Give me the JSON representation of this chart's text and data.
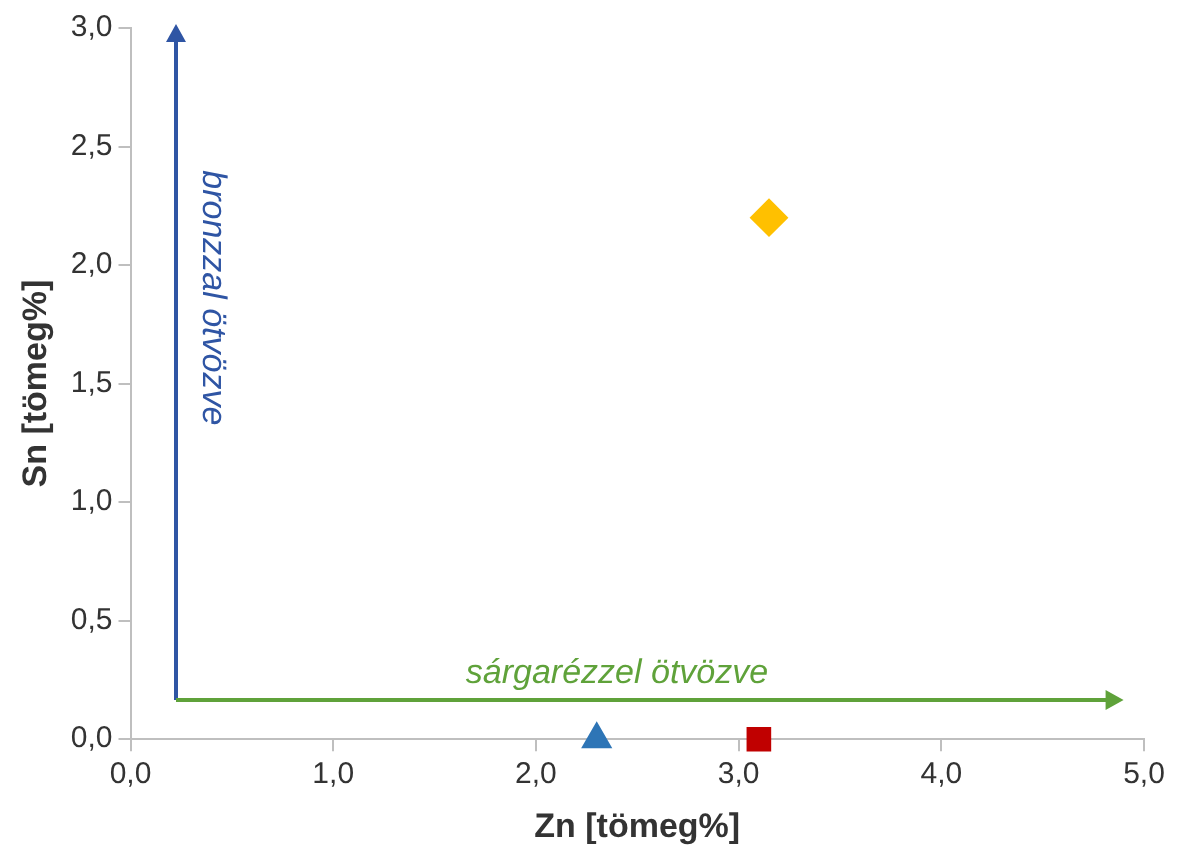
{
  "chart_data": {
    "type": "scatter",
    "xlabel": "Zn [tömeg%]",
    "ylabel": "Sn [tömeg%]",
    "xlim": [
      0,
      5
    ],
    "ylim": [
      0,
      3
    ],
    "xticks": [
      {
        "value": 0,
        "label": "0,0"
      },
      {
        "value": 1,
        "label": "1,0"
      },
      {
        "value": 2,
        "label": "2,0"
      },
      {
        "value": 3,
        "label": "3,0"
      },
      {
        "value": 4,
        "label": "4,0"
      },
      {
        "value": 5,
        "label": "5,0"
      }
    ],
    "yticks": [
      {
        "value": 0,
        "label": "0,0"
      },
      {
        "value": 0.5,
        "label": "0,5"
      },
      {
        "value": 1,
        "label": "1,0"
      },
      {
        "value": 1.5,
        "label": "1,5"
      },
      {
        "value": 2,
        "label": "2,0"
      },
      {
        "value": 2.5,
        "label": "2,5"
      },
      {
        "value": 3,
        "label": "3,0"
      }
    ],
    "grid": false,
    "legend": false,
    "series": [
      {
        "marker": "triangle",
        "color": "#2e75b6",
        "x": [
          2.3
        ],
        "values": [
          0
        ]
      },
      {
        "marker": "square",
        "color": "#c00000",
        "x": [
          3.1
        ],
        "values": [
          0
        ]
      },
      {
        "marker": "diamond",
        "color": "#ffc000",
        "x": [
          3.15
        ],
        "values": [
          2.2
        ]
      }
    ],
    "annotations": [
      "bronzzal ötvözve",
      "sárgarézzel ötvözve"
    ]
  }
}
